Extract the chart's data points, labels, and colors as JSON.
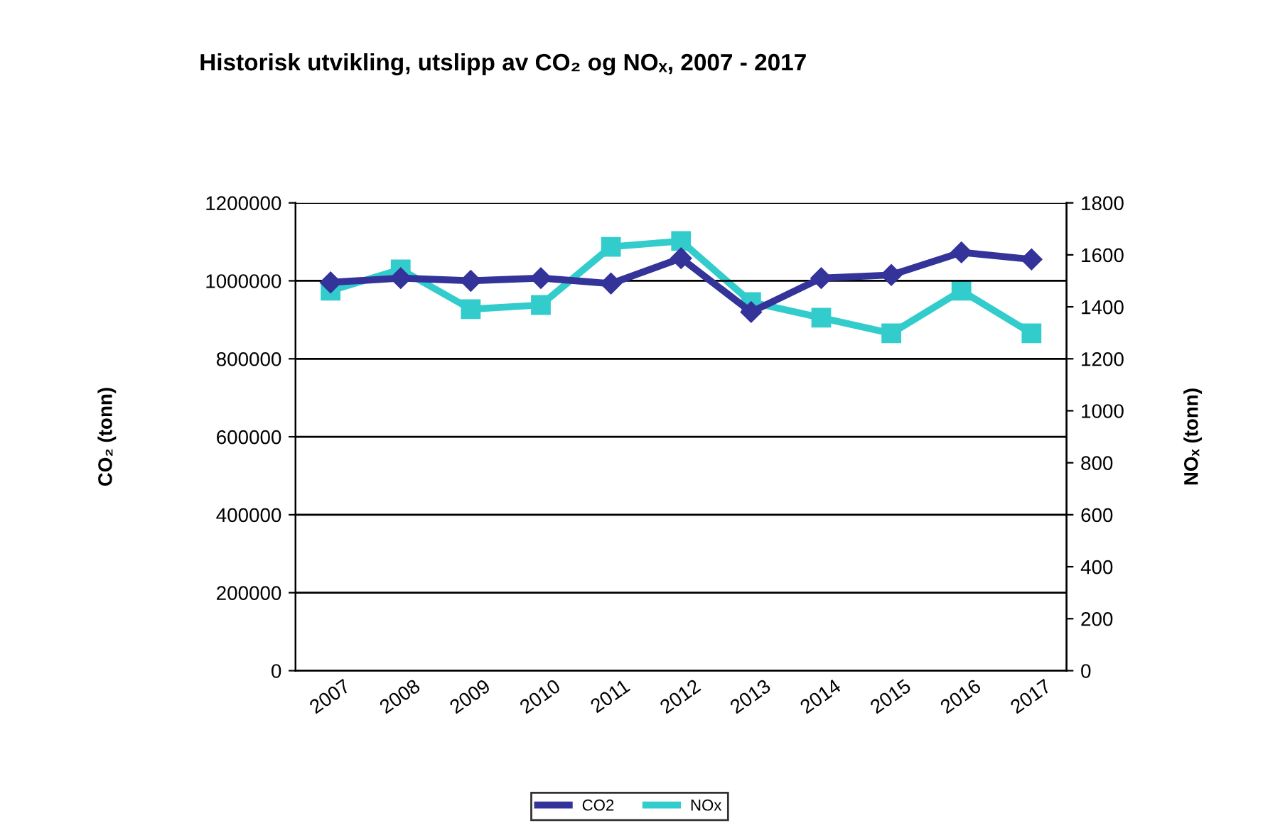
{
  "chart_data": {
    "type": "line",
    "title": "Historisk utvikling, utslipp av CO₂ og NOₓ, 2007 - 2017",
    "ylabel": "CO₂ (tonn)",
    "y2label": "NOₓ (tonn)",
    "categories": [
      "2007",
      "2008",
      "2009",
      "2010",
      "2011",
      "2012",
      "2013",
      "2014",
      "2015",
      "2016",
      "2017"
    ],
    "series": [
      {
        "name": "CO2",
        "color": "#333399",
        "marker": "diamond",
        "values": [
          996000,
          1007000,
          1000000,
          1007000,
          993000,
          1058000,
          920000,
          1007000,
          1015000,
          1073000,
          1055000
        ]
      },
      {
        "name": "NOx",
        "color": "#33cccc",
        "marker": "square",
        "axis": "y2",
        "values": [
          1462,
          1544,
          1391,
          1407,
          1631,
          1653,
          1418,
          1358,
          1298,
          1462,
          1298
        ]
      }
    ],
    "ylim": [
      0,
      1200000
    ],
    "yticks": [
      0,
      200000,
      400000,
      600000,
      800000,
      1000000,
      1200000
    ],
    "y2lim": [
      0,
      1800
    ],
    "y2ticks": [
      0,
      200,
      400,
      600,
      800,
      1000,
      1200,
      1400,
      1600,
      1800
    ],
    "grid": "y",
    "legend": "bottom",
    "line_style": "solid"
  }
}
